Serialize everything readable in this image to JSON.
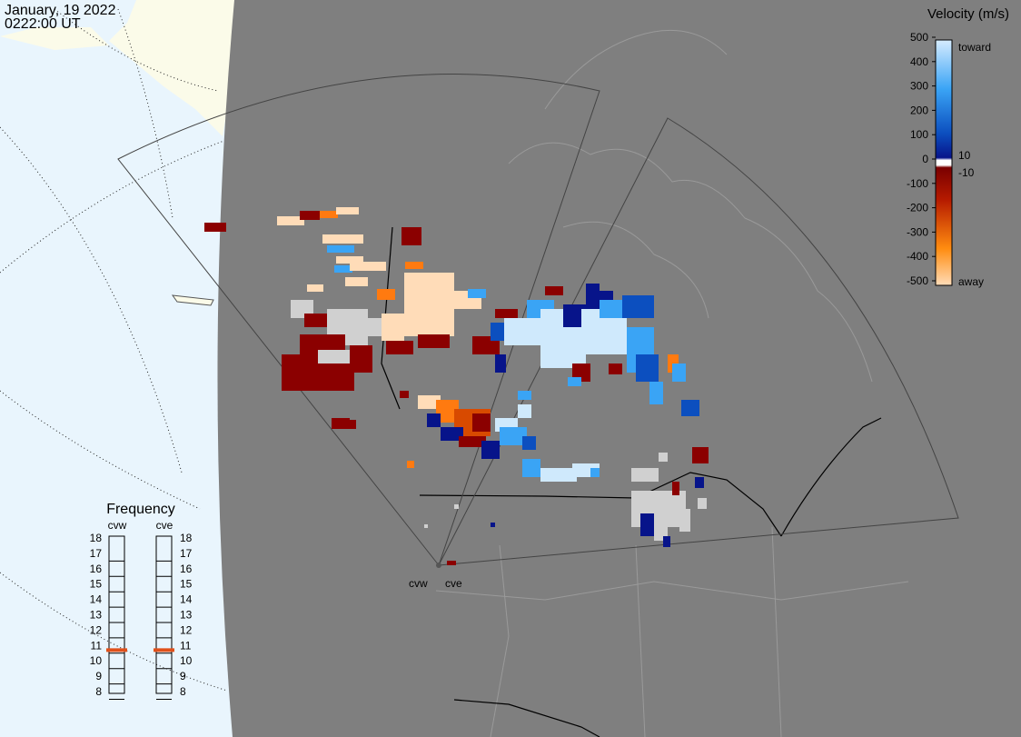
{
  "header": {
    "date": "January, 19 2022",
    "time": "0222:00 UT"
  },
  "colorbar": {
    "title": "Velocity (m/s)",
    "ticks": [
      500,
      400,
      300,
      200,
      100,
      0,
      -100,
      -200,
      -300,
      -400,
      -500
    ],
    "inner_ticks": [
      10,
      -10
    ],
    "toward": "toward",
    "away": "away"
  },
  "frequency": {
    "title": "Frequency",
    "ticks": [
      18,
      17,
      16,
      15,
      14,
      13,
      12,
      11,
      10,
      9,
      8
    ],
    "radars": [
      {
        "name": "cvw",
        "value": 10.7
      },
      {
        "name": "cve",
        "value": 10.7
      }
    ]
  },
  "radar_sites": [
    "cvw",
    "cve"
  ]
}
